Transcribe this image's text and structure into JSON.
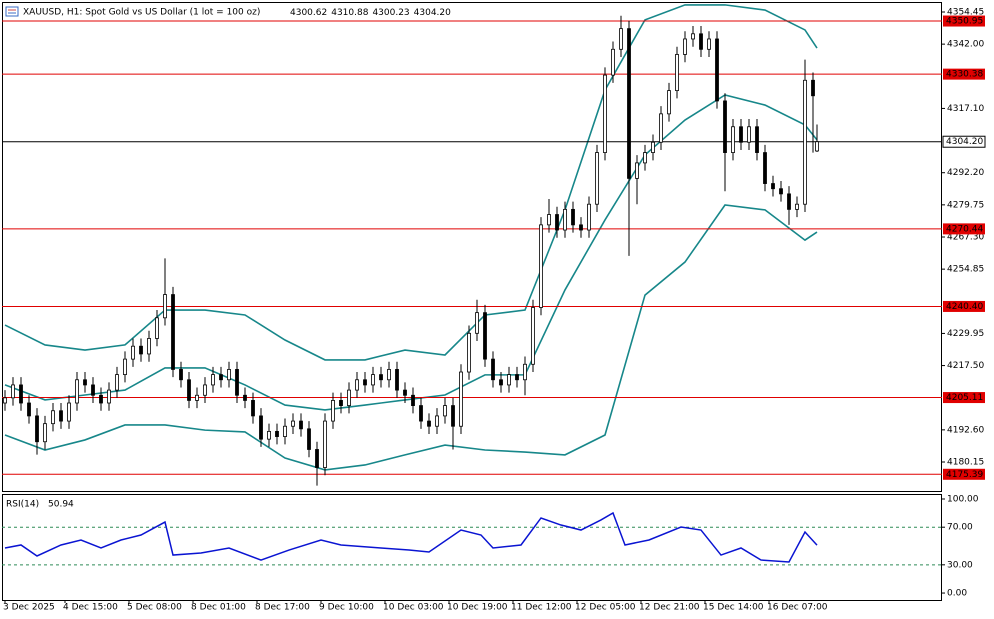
{
  "chart_data": [
    {
      "type": "candlestick",
      "title": "XAUUSD, H1:  Spot Gold vs US Dollar (1 lot = 100 oz)",
      "ohlc_labels": [
        "4300.62",
        "4310.88",
        "4300.23",
        "4304.20"
      ],
      "x": [
        0,
        2,
        4,
        6,
        8,
        10,
        12,
        14,
        16,
        18,
        20,
        22,
        24,
        26,
        28,
        30,
        32,
        34,
        36,
        38,
        40,
        42,
        44,
        46,
        48,
        50,
        52,
        54,
        56,
        58,
        60,
        62,
        64,
        66,
        68,
        70,
        72,
        74,
        76,
        78,
        80,
        82,
        84,
        86,
        88,
        90,
        92,
        94,
        96,
        98,
        100,
        102,
        104,
        106,
        108,
        110,
        112,
        114,
        116,
        118,
        120,
        122,
        124,
        126,
        128,
        130,
        132,
        134,
        136,
        138,
        140,
        142,
        144,
        146,
        148,
        150,
        152,
        154,
        156,
        158,
        160,
        162,
        164,
        166,
        168,
        170,
        172,
        174,
        176,
        178,
        180,
        182,
        184,
        186,
        188,
        190,
        192,
        194,
        196,
        198,
        200,
        202,
        203
      ],
      "open": [
        4203,
        4205,
        4210,
        4203,
        4198,
        4188,
        4195,
        4200,
        4196,
        4203,
        4212,
        4210,
        4206,
        4203,
        4208,
        4214,
        4220,
        4225,
        4222,
        4228,
        4236,
        4245,
        4216,
        4212,
        4204,
        4206,
        4210,
        4214,
        4212,
        4216,
        4206,
        4204,
        4198,
        4189,
        4192,
        4190,
        4194,
        4196,
        4193,
        4185,
        4178,
        4196,
        4204,
        4202,
        4208,
        4212,
        4210,
        4214,
        4212,
        4216,
        4208,
        4206,
        4202,
        4196,
        4194,
        4198,
        4202,
        4194,
        4215,
        4230,
        4238,
        4220,
        4212,
        4210,
        4214,
        4212,
        4218,
        4240,
        4272,
        4276,
        4270,
        4278,
        4272,
        4270,
        4280,
        4300,
        4330,
        4340,
        4348,
        4290,
        4296,
        4300,
        4304,
        4315,
        4324,
        4338,
        4344,
        4346,
        4340,
        4344,
        4320,
        4300,
        4310,
        4304,
        4310,
        4300,
        4288,
        4286,
        4284,
        4278,
        4280,
        4328,
        4300.62
      ],
      "high": [
        4208,
        4213,
        4213,
        4206,
        4201,
        4198,
        4203,
        4203,
        4206,
        4215,
        4215,
        4213,
        4209,
        4211,
        4217,
        4223,
        4228,
        4228,
        4231,
        4239,
        4259,
        4248,
        4219,
        4215,
        4209,
        4213,
        4217,
        4217,
        4219,
        4219,
        4209,
        4207,
        4201,
        4195,
        4195,
        4197,
        4199,
        4199,
        4196,
        4188,
        4199,
        4207,
        4207,
        4211,
        4215,
        4215,
        4217,
        4217,
        4219,
        4219,
        4211,
        4209,
        4205,
        4199,
        4201,
        4205,
        4205,
        4218,
        4233,
        4243,
        4241,
        4223,
        4215,
        4217,
        4217,
        4221,
        4243,
        4275,
        4282,
        4279,
        4281,
        4281,
        4275,
        4283,
        4303,
        4333,
        4343,
        4353,
        4351,
        4299,
        4303,
        4307,
        4318,
        4327,
        4341,
        4347,
        4349,
        4349,
        4347,
        4347,
        4323,
        4313,
        4313,
        4313,
        4313,
        4303,
        4291,
        4289,
        4287,
        4283,
        4336,
        4331,
        4310.88
      ],
      "low": [
        4200,
        4202,
        4200,
        4195,
        4183,
        4185,
        4192,
        4193,
        4193,
        4200,
        4207,
        4203,
        4200,
        4200,
        4205,
        4211,
        4217,
        4219,
        4219,
        4225,
        4233,
        4213,
        4209,
        4201,
        4201,
        4203,
        4207,
        4209,
        4209,
        4203,
        4201,
        4195,
        4186,
        4186,
        4187,
        4187,
        4191,
        4190,
        4182,
        4171,
        4175,
        4193,
        4199,
        4199,
        4205,
        4207,
        4207,
        4209,
        4209,
        4205,
        4203,
        4199,
        4193,
        4191,
        4191,
        4195,
        4185,
        4191,
        4212,
        4227,
        4217,
        4209,
        4207,
        4207,
        4209,
        4206,
        4215,
        4237,
        4269,
        4267,
        4267,
        4269,
        4267,
        4267,
        4277,
        4297,
        4327,
        4337,
        4260,
        4280,
        4293,
        4297,
        4301,
        4312,
        4321,
        4335,
        4341,
        4337,
        4337,
        4317,
        4285,
        4297,
        4301,
        4301,
        4297,
        4285,
        4283,
        4281,
        4272,
        4275,
        4277,
        4300,
        4300.23
      ],
      "close": [
        4205,
        4210,
        4203,
        4198,
        4188,
        4195,
        4200,
        4196,
        4203,
        4212,
        4210,
        4206,
        4203,
        4208,
        4214,
        4220,
        4225,
        4222,
        4228,
        4236,
        4245,
        4216,
        4212,
        4204,
        4206,
        4210,
        4214,
        4212,
        4216,
        4206,
        4204,
        4198,
        4189,
        4192,
        4190,
        4194,
        4196,
        4193,
        4185,
        4178,
        4196,
        4204,
        4202,
        4208,
        4212,
        4210,
        4214,
        4212,
        4216,
        4208,
        4206,
        4202,
        4196,
        4194,
        4198,
        4202,
        4194,
        4215,
        4230,
        4238,
        4220,
        4212,
        4210,
        4214,
        4212,
        4218,
        4240,
        4272,
        4276,
        4270,
        4278,
        4272,
        4270,
        4280,
        4300,
        4330,
        4340,
        4348,
        4290,
        4296,
        4300,
        4304,
        4315,
        4324,
        4338,
        4344,
        4346,
        4340,
        4344,
        4320,
        4300,
        4310,
        4304,
        4310,
        4300,
        4288,
        4286,
        4284,
        4278,
        4280,
        4328,
        4322,
        4304.2
      ],
      "colors": {
        "up": "#ffffff",
        "down": "#000000",
        "wick": "#000000"
      },
      "bands": {
        "x": [
          0,
          10,
          20,
          30,
          40,
          50,
          60,
          70,
          80,
          90,
          100,
          110,
          120,
          130,
          140,
          150,
          160,
          170,
          180,
          190,
          200,
          203
        ],
        "series": [
          {
            "color": "#17878a",
            "values": [
              4233.2,
              4225.5,
              4223.5,
              4225.5,
              4239.0,
              4239.0,
              4237.1,
              4227.4,
              4219.7,
              4219.7,
              4223.5,
              4221.6,
              4237.1,
              4239.0,
              4277.8,
              4324.2,
              4351.4,
              4357.2,
              4357.2,
              4355.2,
              4347.5,
              4340.5
            ]
          },
          {
            "color": "#17878a",
            "values": [
              4210.0,
              4204.2,
              4206.1,
              4208.0,
              4216.6,
              4216.6,
              4210.0,
              4202.2,
              4200.3,
              4202.2,
              4204.2,
              4206.1,
              4213.9,
              4213.9,
              4246.8,
              4273.9,
              4299.1,
              4312.6,
              4322.3,
              4318.4,
              4310.7,
              4304.9
            ]
          },
          {
            "color": "#17878a",
            "values": [
              4190.6,
              4184.8,
              4188.7,
              4194.5,
              4194.5,
              4192.5,
              4191.8,
              4181.7,
              4177.1,
              4179.0,
              4182.9,
              4186.7,
              4184.8,
              4184.0,
              4182.9,
              4190.6,
              4244.8,
              4257.6,
              4279.7,
              4277.8,
              4266.1,
              4269.2
            ]
          }
        ]
      },
      "levels": [
        4350.95,
        4330.38,
        4270.44,
        {
          "value": 4240.4,
          "label": "4240.40"
        },
        4205.11,
        4175.39
      ],
      "level_color": "#e00000",
      "current_price": {
        "value": 4304.2,
        "label": "4304.20"
      },
      "xlim": [
        -0.75,
        234.25
      ],
      "ylim": [
        4168.53,
        4358.32
      ],
      "yticks": [
        4354.45,
        {
          "value": 4342,
          "label": "4342.00"
        },
        {
          "value": 4317.1,
          "label": "4317.10"
        },
        {
          "value": 4292.2,
          "label": "4292.20"
        },
        4279.75,
        {
          "value": 4267.3,
          "label": "4267.30"
        },
        4254.85,
        4229.95,
        {
          "value": 4217.5,
          "label": "4217.50"
        },
        {
          "value": 4192.6,
          "label": "4192.60"
        },
        4180.15
      ]
    },
    {
      "type": "line",
      "title": "RSI(14)",
      "x": [
        0,
        4,
        8,
        14,
        19,
        24,
        29,
        34,
        40,
        42,
        49,
        56,
        64,
        71,
        79,
        84,
        94,
        101,
        106,
        114,
        119,
        122,
        129,
        134,
        139,
        144,
        149,
        152,
        155,
        161,
        169,
        174,
        179,
        184,
        189,
        196,
        200,
        203
      ],
      "series": [
        {
          "color": "#0a14d2",
          "values": [
            47.9,
            51.1,
            39.4,
            51.1,
            56.4,
            47.9,
            56.4,
            61.7,
            75.5,
            40.4,
            42.6,
            47.9,
            35.1,
            45.7,
            56.4,
            51.1,
            47.9,
            45.7,
            43.6,
            67.0,
            61.7,
            47.9,
            51.1,
            79.8,
            72.3,
            67.0,
            77.7,
            85.1,
            51.1,
            56.4,
            70.2,
            67.0,
            40.4,
            47.9,
            35.1,
            33.0,
            64.9,
            50.94
          ]
        }
      ],
      "levels": [
        70,
        30
      ],
      "level_color": "#2e8b57",
      "xlim": [
        -0.75,
        234.25
      ],
      "ylim": [
        -7.4,
        105.3
      ],
      "yticks": [
        {
          "value": 100,
          "label": "100.00"
        },
        {
          "value": 70,
          "label": "70.00"
        },
        {
          "value": 30,
          "label": "30.00"
        },
        {
          "value": 0,
          "label": "0.00"
        }
      ],
      "xticks": [
        {
          "value": 0,
          "label": "3 Dec 2025"
        },
        {
          "value": 15,
          "label": "4 Dec 15:00"
        },
        {
          "value": 31,
          "label": "5 Dec 08:00"
        },
        {
          "value": 47,
          "label": "8 Dec 01:00"
        },
        {
          "value": 63,
          "label": "8 Dec 17:00"
        },
        {
          "value": 79,
          "label": "9 Dec 10:00"
        },
        {
          "value": 95,
          "label": "10 Dec 03:00"
        },
        {
          "value": 111,
          "label": "10 Dec 19:00"
        },
        {
          "value": 127,
          "label": "11 Dec 12:00"
        },
        {
          "value": 143,
          "label": "12 Dec 05:00"
        },
        {
          "value": 159,
          "label": "12 Dec 21:00"
        },
        {
          "value": 175,
          "label": "15 Dec 14:00"
        },
        {
          "value": 191,
          "label": "16 Dec 07:00"
        }
      ]
    }
  ]
}
